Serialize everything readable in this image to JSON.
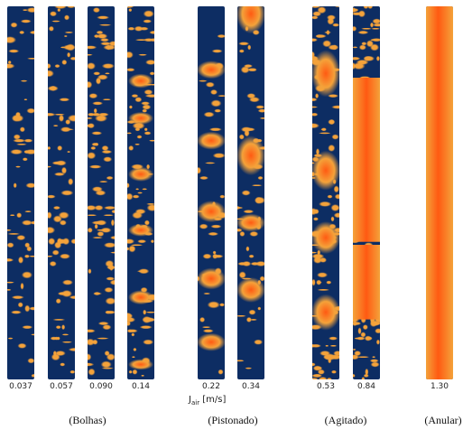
{
  "strips": [
    {
      "value": "0.037"
    },
    {
      "value": "0.057"
    },
    {
      "value": "0.090"
    },
    {
      "value": "0.14"
    },
    {
      "value": "0.22"
    },
    {
      "value": "0.34"
    },
    {
      "value": "0.53"
    },
    {
      "value": "0.84"
    },
    {
      "value": "1.30"
    }
  ],
  "axis": {
    "symbol": "J",
    "subscript": "air",
    "unit": "[m/s]"
  },
  "regimes": [
    "(Bolhas)",
    "(Pistonado)",
    "(Agitado)",
    "(Anular)"
  ],
  "colors": {
    "liquid": "#0d2d63",
    "gas": "#f4a23a",
    "gas_core": "#ff5a12"
  }
}
